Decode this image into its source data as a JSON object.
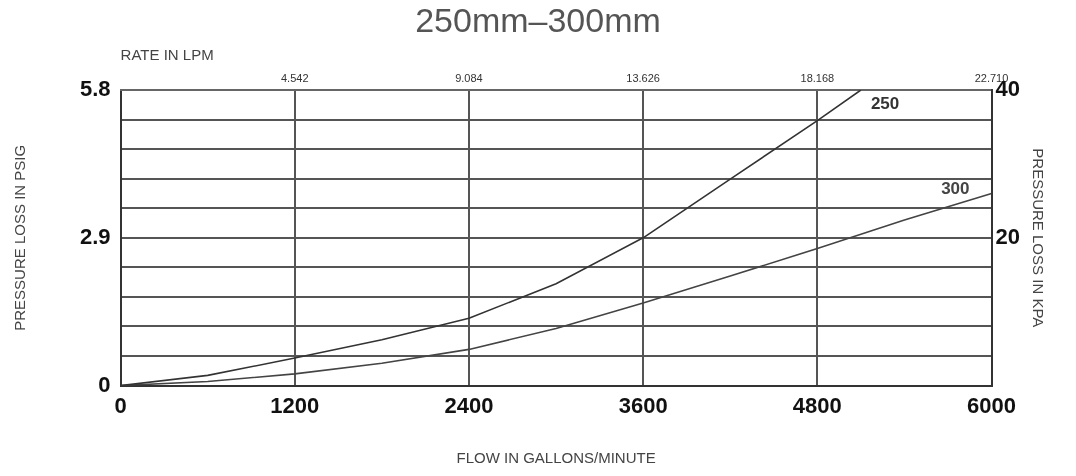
{
  "chart_data": {
    "type": "line",
    "title": "250mm–300mm",
    "xlabel": "FLOW IN GALLONS/MINUTE",
    "ylabel": "PRESSURE LOSS IN PSIG",
    "y2label": "PRESSURE LOSS IN KPA",
    "x2label": "RATE IN LPM",
    "xlim": [
      0,
      6000
    ],
    "xticks": [
      0,
      1200,
      2400,
      3600,
      4800,
      6000
    ],
    "x2lim": [
      0,
      22.71
    ],
    "x2ticks": [
      4.542,
      9.084,
      13.626,
      18.168,
      {
        "value": 22.71,
        "label": "22.710"
      }
    ],
    "ylim": [
      0,
      5.8
    ],
    "yticks": [
      0,
      {
        "value": 0.58,
        "label": null
      },
      {
        "value": 1.16,
        "label": null
      },
      {
        "value": 1.74,
        "label": null
      },
      {
        "value": 2.32,
        "label": null
      },
      2.9,
      {
        "value": 3.48,
        "label": null
      },
      {
        "value": 4.06,
        "label": null
      },
      {
        "value": 4.64,
        "label": null
      },
      {
        "value": 5.22,
        "label": null
      },
      5.8
    ],
    "y2lim": [
      0,
      40
    ],
    "y2ticks": [
      20,
      40
    ],
    "grid": true,
    "legend": false,
    "marker": "none",
    "line_style": "solid",
    "series": [
      {
        "name": "250",
        "color": "#333333",
        "x": [
          0,
          600,
          1200,
          1800,
          2400,
          3000,
          3600,
          4200,
          4800,
          5100
        ],
        "values": [
          0,
          0.2,
          0.54,
          0.9,
          1.32,
          2.0,
          2.9,
          4.05,
          5.2,
          5.8
        ]
      },
      {
        "name": "300",
        "color": "#444444",
        "x": [
          0,
          600,
          1200,
          1800,
          2400,
          3000,
          3600,
          4200,
          4800,
          5400,
          6000
        ],
        "values": [
          0,
          0.08,
          0.23,
          0.44,
          0.71,
          1.12,
          1.62,
          2.15,
          2.69,
          3.25,
          3.77
        ]
      }
    ]
  }
}
